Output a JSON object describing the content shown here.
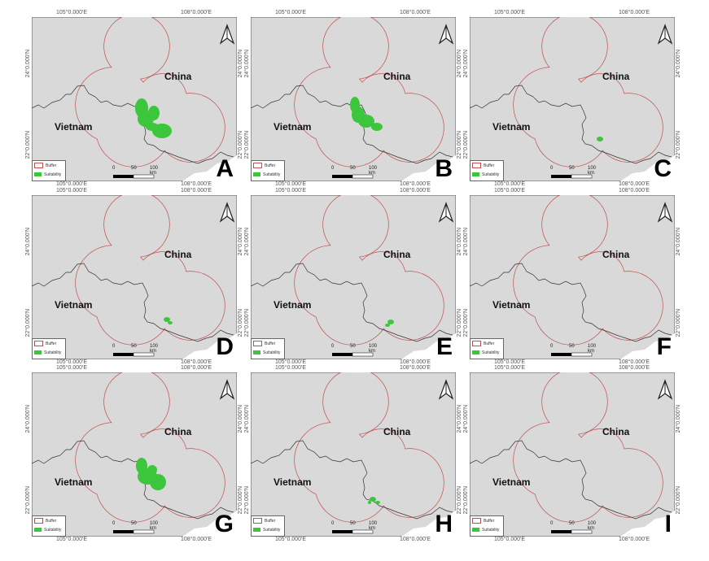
{
  "colors": {
    "background": "#d9d9d9",
    "buffer": "#c0504d",
    "border": "#333333",
    "suitability": "#3cc63c",
    "coast": "#ffffff"
  },
  "common": {
    "china_label": "China",
    "vietnam_label": "Vietnam",
    "legend": {
      "buffer": "Buffer",
      "suitability": "Suitability"
    },
    "scale": {
      "t0": "0",
      "t1": "50",
      "t2": "100 km"
    },
    "coords": {
      "lon1": "105°0.000'E",
      "lon2": "108°0.000'E",
      "lat1": "24°0.000'N",
      "lat2": "22°0.000'N"
    },
    "north_arrow": "north-arrow-icon"
  },
  "panels": [
    {
      "letter": "A"
    },
    {
      "letter": "B"
    },
    {
      "letter": "C"
    },
    {
      "letter": "D"
    },
    {
      "letter": "E"
    },
    {
      "letter": "F"
    },
    {
      "letter": "G"
    },
    {
      "letter": "H"
    },
    {
      "letter": "I"
    }
  ]
}
